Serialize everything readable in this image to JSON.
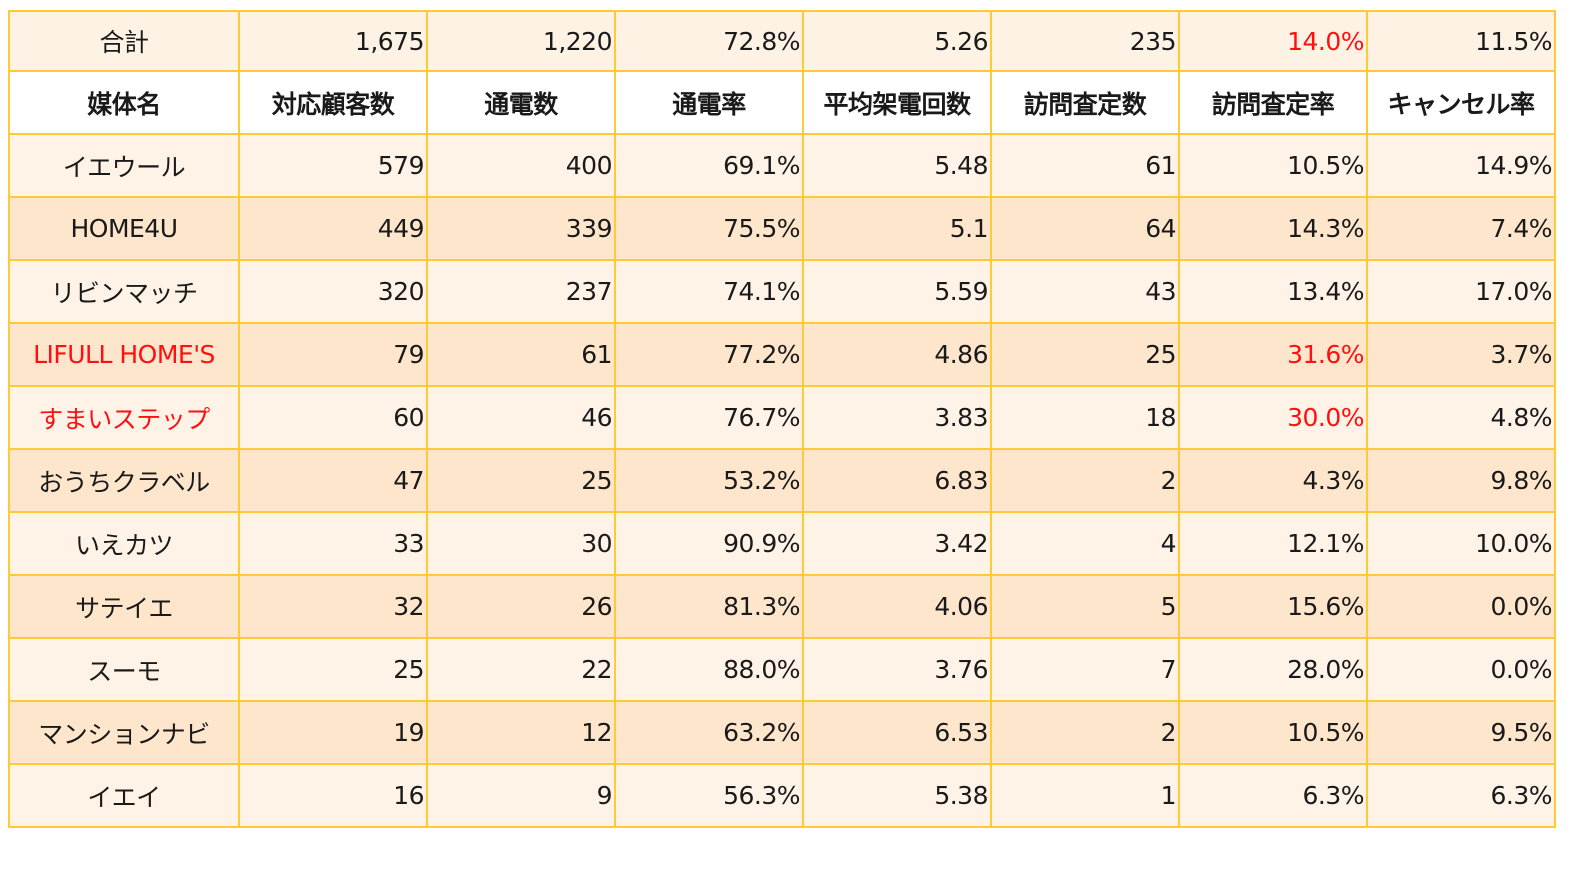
{
  "theme": {
    "border_color": "#FFC937",
    "row_light": "#FEF3E6",
    "row_dark": "#FEE6CD",
    "total_bg": "#FEF2E4",
    "header_bg": "#FFFFFF",
    "highlight_red": "#FF1010"
  },
  "total": {
    "label": "合計",
    "customers": "1,675",
    "connected": "1,220",
    "connect_rate": "72.8%",
    "avg_calls": "5.26",
    "visits": "235",
    "visit_rate": "14.0%",
    "cancel_rate": "11.5%"
  },
  "headers": {
    "media_name": "媒体名",
    "customers": "対応顧客数",
    "connected": "通電数",
    "connect_rate": "通電率",
    "avg_calls": "平均架電回数",
    "visits": "訪問査定数",
    "visit_rate": "訪問査定率",
    "cancel_rate": "キャンセル率"
  },
  "rows": [
    {
      "name": "イエウール",
      "customers": "579",
      "connected": "400",
      "connect_rate": "69.1%",
      "avg_calls": "5.48",
      "visits": "61",
      "visit_rate": "10.5%",
      "cancel_rate": "14.9%"
    },
    {
      "name": "HOME4U",
      "customers": "449",
      "connected": "339",
      "connect_rate": "75.5%",
      "avg_calls": "5.1",
      "visits": "64",
      "visit_rate": "14.3%",
      "cancel_rate": "7.4%"
    },
    {
      "name": "リビンマッチ",
      "customers": "320",
      "connected": "237",
      "connect_rate": "74.1%",
      "avg_calls": "5.59",
      "visits": "43",
      "visit_rate": "13.4%",
      "cancel_rate": "17.0%"
    },
    {
      "name": "LIFULL HOME'S",
      "customers": "79",
      "connected": "61",
      "connect_rate": "77.2%",
      "avg_calls": "4.86",
      "visits": "25",
      "visit_rate": "31.6%",
      "cancel_rate": "3.7%"
    },
    {
      "name": "すまいステップ",
      "customers": "60",
      "connected": "46",
      "connect_rate": "76.7%",
      "avg_calls": "3.83",
      "visits": "18",
      "visit_rate": "30.0%",
      "cancel_rate": "4.8%"
    },
    {
      "name": "おうちクラベル",
      "customers": "47",
      "connected": "25",
      "connect_rate": "53.2%",
      "avg_calls": "6.83",
      "visits": "2",
      "visit_rate": "4.3%",
      "cancel_rate": "9.8%"
    },
    {
      "name": "いえカツ",
      "customers": "33",
      "connected": "30",
      "connect_rate": "90.9%",
      "avg_calls": "3.42",
      "visits": "4",
      "visit_rate": "12.1%",
      "cancel_rate": "10.0%"
    },
    {
      "name": "サテイエ",
      "customers": "32",
      "connected": "26",
      "connect_rate": "81.3%",
      "avg_calls": "4.06",
      "visits": "5",
      "visit_rate": "15.6%",
      "cancel_rate": "0.0%"
    },
    {
      "name": "スーモ",
      "customers": "25",
      "connected": "22",
      "connect_rate": "88.0%",
      "avg_calls": "3.76",
      "visits": "7",
      "visit_rate": "28.0%",
      "cancel_rate": "0.0%"
    },
    {
      "name": "マンションナビ",
      "customers": "19",
      "connected": "12",
      "connect_rate": "63.2%",
      "avg_calls": "6.53",
      "visits": "2",
      "visit_rate": "10.5%",
      "cancel_rate": "9.5%"
    },
    {
      "name": "イエイ",
      "customers": "16",
      "connected": "9",
      "connect_rate": "56.3%",
      "avg_calls": "5.38",
      "visits": "1",
      "visit_rate": "6.3%",
      "cancel_rate": "6.3%"
    }
  ],
  "highlights": {
    "red_names": [
      "LIFULL HOME'S",
      "すまいステップ"
    ],
    "red_visit_rates": [
      "total",
      "LIFULL HOME'S",
      "すまいステップ"
    ]
  }
}
